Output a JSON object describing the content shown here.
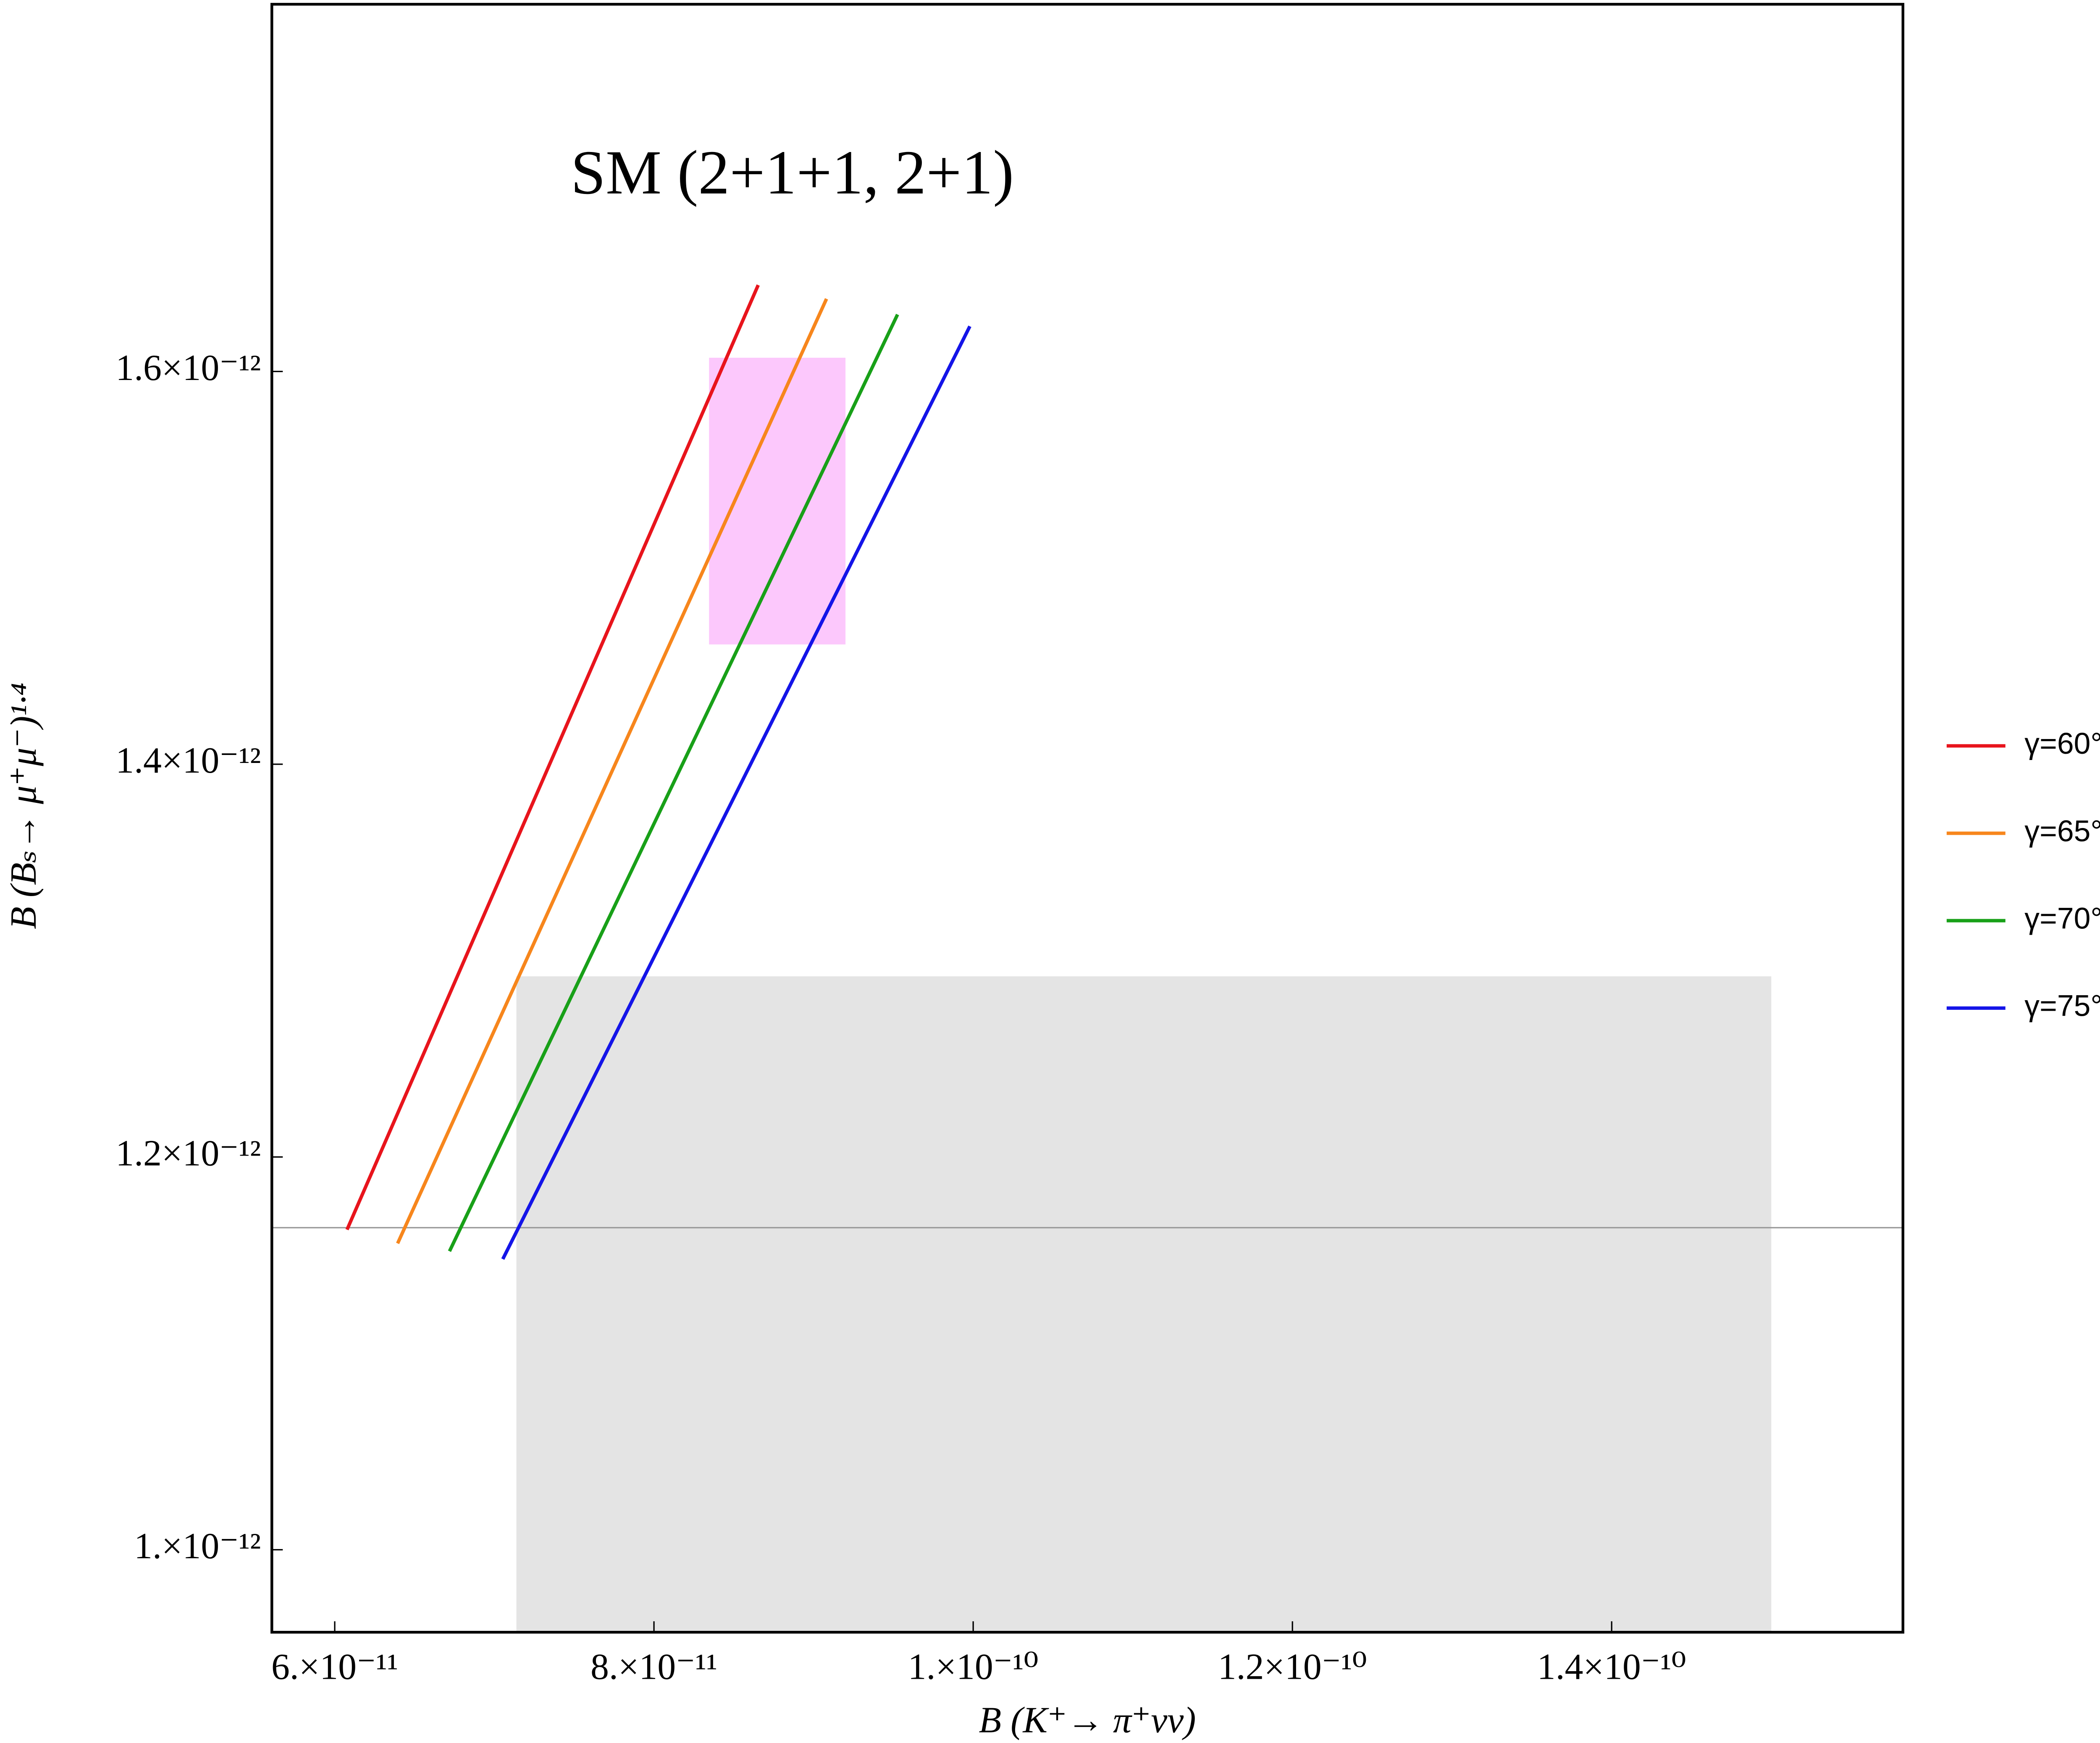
{
  "chart_data": {
    "type": "line",
    "title": "SM (2+1+1, 2+1)",
    "x_label": "B (K⁺→ π⁺νν)",
    "y_label": "B (Bₛ→ μ⁺μ⁻)¹·⁴",
    "xlim": [
      5.606e-11,
      1.5825e-10
    ],
    "ylim": [
      9.58e-13,
      1.787e-12
    ],
    "xticks": [
      {
        "value": 6e-11,
        "label": "6.×10⁻¹¹"
      },
      {
        "value": 8e-11,
        "label": "8.×10⁻¹¹"
      },
      {
        "value": 1e-10,
        "label": "1.×10⁻¹⁰"
      },
      {
        "value": 1.2e-10,
        "label": "1.2×10⁻¹⁰"
      },
      {
        "value": 1.4e-10,
        "label": "1.4×10⁻¹⁰"
      }
    ],
    "yticks": [
      {
        "value": 1e-12,
        "label": "1.×10⁻¹²"
      },
      {
        "value": 1.2e-12,
        "label": "1.2×10⁻¹²"
      },
      {
        "value": 1.4e-12,
        "label": "1.4×10⁻¹²"
      },
      {
        "value": 1.6e-12,
        "label": "1.6×10⁻¹²"
      }
    ],
    "regions": [
      {
        "color": "#e4e4e4",
        "x": [
          7.138e-11,
          1.5e-10
        ],
        "y": [
          9.58e-13,
          1.292e-12
        ]
      },
      {
        "color": "#fcc8fc",
        "x": [
          8.345e-11,
          9.2e-11
        ],
        "y": [
          1.461e-12,
          1.607e-12
        ]
      }
    ],
    "hline": 1.164e-12,
    "series": [
      {
        "name": "γ=60°",
        "color": "#e8141c",
        "x": [
          6.077e-11,
          8.653e-11
        ],
        "values": [
          1.163e-12,
          1.644e-12
        ]
      },
      {
        "name": "γ=65°",
        "color": "#f7861c",
        "x": [
          6.394e-11,
          9.081e-11
        ],
        "values": [
          1.156e-12,
          1.637e-12
        ]
      },
      {
        "name": "γ=70°",
        "color": "#18a018",
        "x": [
          6.719e-11,
          9.526e-11
        ],
        "values": [
          1.152e-12,
          1.629e-12
        ]
      },
      {
        "name": "γ=75°",
        "color": "#1414e8",
        "x": [
          7.053e-11,
          9.979e-11
        ],
        "values": [
          1.148e-12,
          1.623e-12
        ]
      }
    ]
  }
}
